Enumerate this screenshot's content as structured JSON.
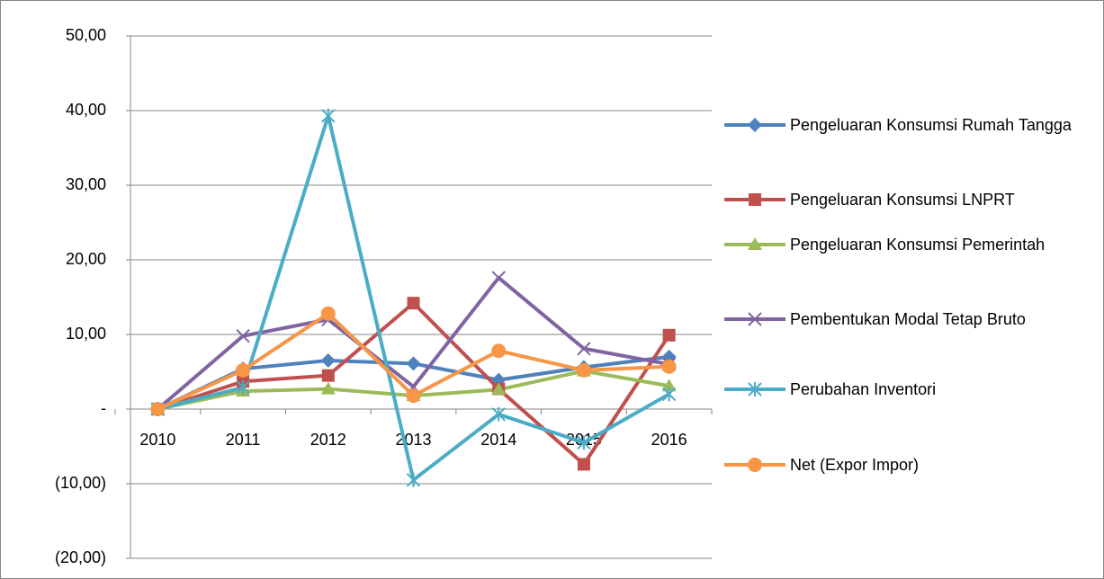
{
  "chart_data": {
    "type": "line",
    "categories": [
      "2010",
      "2011",
      "2012",
      "2013",
      "2014",
      "2015",
      "2016"
    ],
    "series": [
      {
        "name": "Pengeluaran Konsumsi Rumah Tangga",
        "color": "#4F81BD",
        "marker": "diamond",
        "values": [
          0,
          5.4,
          6.5,
          6.1,
          3.9,
          5.6,
          7.0
        ]
      },
      {
        "name": "Pengeluaran Konsumsi LNPRT",
        "color": "#C0504D",
        "marker": "square",
        "values": [
          0,
          3.7,
          4.5,
          14.2,
          2.7,
          -7.4,
          9.9
        ]
      },
      {
        "name": "Pengeluaran Konsumsi Pemerintah",
        "color": "#9BBB59",
        "marker": "triangle",
        "values": [
          0,
          2.4,
          2.7,
          1.8,
          2.6,
          5.1,
          3.1
        ]
      },
      {
        "name": "Pembentukan Modal Tetap Bruto",
        "color": "#8064A2",
        "marker": "x",
        "values": [
          0,
          9.8,
          12.0,
          3.0,
          17.6,
          8.1,
          6.0
        ]
      },
      {
        "name": "Perubahan Inventori",
        "color": "#4BACC6",
        "marker": "star",
        "values": [
          0,
          2.9,
          39.3,
          -9.5,
          -0.7,
          -4.5,
          2.0
        ]
      },
      {
        "name": "Net (Expor Impor)",
        "color": "#F79646",
        "marker": "circle",
        "values": [
          0,
          5.2,
          12.8,
          1.8,
          7.8,
          5.2,
          5.7
        ]
      }
    ],
    "ylim": [
      -20,
      50
    ],
    "yticks": [
      {
        "value": -20,
        "label": "(20,00)"
      },
      {
        "value": -10,
        "label": "(10,00)"
      },
      {
        "value": 0,
        "label": "-"
      },
      {
        "value": 10,
        "label": "10,00"
      },
      {
        "value": 20,
        "label": "20,00"
      },
      {
        "value": 30,
        "label": "30,00"
      },
      {
        "value": 40,
        "label": "40,00"
      },
      {
        "value": 50,
        "label": "50,00"
      }
    ],
    "grid": true,
    "legend": "right"
  }
}
